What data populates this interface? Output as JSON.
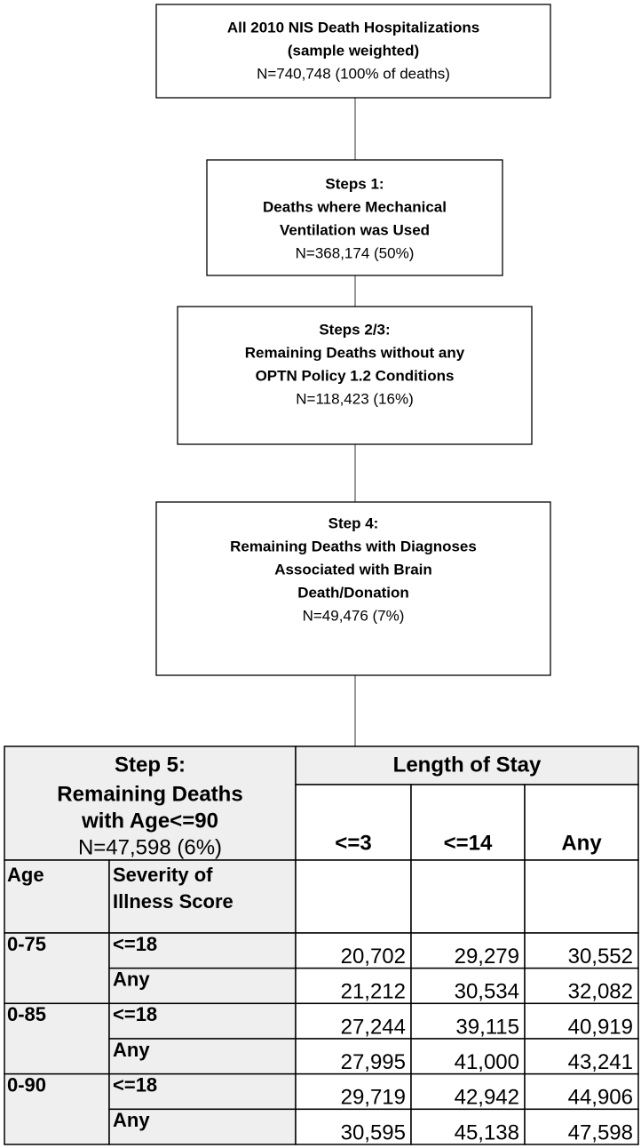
{
  "boxes": [
    {
      "lines": [
        "All 2010 NIS Death Hospitalizations",
        "(sample weighted)",
        "N=740,748 (100% of deaths)"
      ]
    },
    {
      "lines": [
        "Steps 1:",
        "Deaths where Mechanical",
        "Ventilation was Used",
        "N=368,174 (50%)"
      ]
    },
    {
      "lines": [
        "Steps 2/3:",
        "Remaining Deaths without any",
        "OPTN Policy 1.2 Conditions",
        "N=118,423 (16%)"
      ]
    },
    {
      "lines": [
        "Step 4:",
        "Remaining Deaths with Diagnoses",
        "Associated with Brain",
        "Death/Donation",
        "N=49,476 (7%)"
      ]
    }
  ],
  "table": {
    "title_lines": [
      "Step 5:",
      "Remaining Deaths",
      "with Age<=90",
      "N=47,598 (6%)"
    ],
    "group_header": "Length of Stay",
    "columns": [
      "<=3",
      "<=14",
      "Any"
    ],
    "age_header": "Age",
    "severity_header": [
      "Severity of",
      "Illness Score"
    ],
    "groups": [
      {
        "age": "0-75",
        "rows": [
          {
            "severity": "<=18",
            "values": [
              "20,702",
              "29,279",
              "30,552"
            ]
          },
          {
            "severity": "Any",
            "values": [
              "21,212",
              "30,534",
              "32,082"
            ]
          }
        ]
      },
      {
        "age": "0-85",
        "rows": [
          {
            "severity": "<=18",
            "values": [
              "27,244",
              "39,115",
              "40,919"
            ]
          },
          {
            "severity": "Any",
            "values": [
              "27,995",
              "41,000",
              "43,241"
            ]
          }
        ]
      },
      {
        "age": "0-90",
        "rows": [
          {
            "severity": "<=18",
            "values": [
              "29,719",
              "42,942",
              "44,906"
            ]
          },
          {
            "severity": "Any",
            "values": [
              "30,595",
              "45,138",
              "47,598"
            ]
          }
        ]
      }
    ]
  }
}
